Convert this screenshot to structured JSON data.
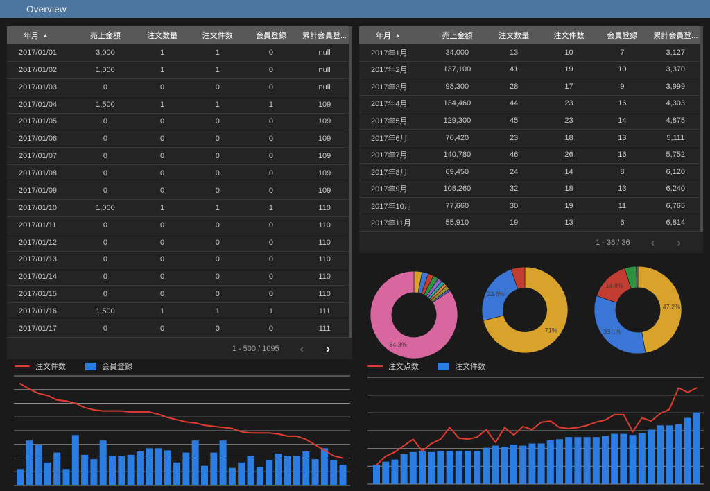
{
  "title_bar": {
    "title": "Overview"
  },
  "left_table": {
    "columns": [
      "年月",
      "売上金額",
      "注文数量",
      "注文件数",
      "会員登録",
      "累計会員登..."
    ],
    "sort": {
      "column": "年月",
      "direction": "asc"
    },
    "rows": [
      [
        "2017/01/01",
        "3,000",
        "1",
        "1",
        "0",
        "null"
      ],
      [
        "2017/01/02",
        "1,000",
        "1",
        "1",
        "0",
        "null"
      ],
      [
        "2017/01/03",
        "0",
        "0",
        "0",
        "0",
        "null"
      ],
      [
        "2017/01/04",
        "1,500",
        "1",
        "1",
        "1",
        "109"
      ],
      [
        "2017/01/05",
        "0",
        "0",
        "0",
        "0",
        "109"
      ],
      [
        "2017/01/06",
        "0",
        "0",
        "0",
        "0",
        "109"
      ],
      [
        "2017/01/07",
        "0",
        "0",
        "0",
        "0",
        "109"
      ],
      [
        "2017/01/08",
        "0",
        "0",
        "0",
        "0",
        "109"
      ],
      [
        "2017/01/09",
        "0",
        "0",
        "0",
        "0",
        "109"
      ],
      [
        "2017/01/10",
        "1,000",
        "1",
        "1",
        "1",
        "110"
      ],
      [
        "2017/01/11",
        "0",
        "0",
        "0",
        "0",
        "110"
      ],
      [
        "2017/01/12",
        "0",
        "0",
        "0",
        "0",
        "110"
      ],
      [
        "2017/01/13",
        "0",
        "0",
        "0",
        "0",
        "110"
      ],
      [
        "2017/01/14",
        "0",
        "0",
        "0",
        "0",
        "110"
      ],
      [
        "2017/01/15",
        "0",
        "0",
        "0",
        "0",
        "110"
      ],
      [
        "2017/01/16",
        "1,500",
        "1",
        "1",
        "1",
        "111"
      ],
      [
        "2017/01/17",
        "0",
        "0",
        "0",
        "0",
        "111"
      ]
    ],
    "pagination": {
      "range": "1 - 500 / 1095",
      "prev_enabled": false,
      "next_enabled": true
    }
  },
  "right_table": {
    "columns": [
      "年月",
      "売上金額",
      "注文数量",
      "注文件数",
      "会員登録",
      "累計会員登..."
    ],
    "sort": {
      "column": "年月",
      "direction": "asc"
    },
    "rows": [
      [
        "2017年1月",
        "34,000",
        "13",
        "10",
        "7",
        "3,127"
      ],
      [
        "2017年2月",
        "137,100",
        "41",
        "19",
        "10",
        "3,370"
      ],
      [
        "2017年3月",
        "98,300",
        "28",
        "17",
        "9",
        "3,999"
      ],
      [
        "2017年4月",
        "134,460",
        "44",
        "23",
        "16",
        "4,303"
      ],
      [
        "2017年5月",
        "129,300",
        "45",
        "23",
        "14",
        "4,875"
      ],
      [
        "2017年6月",
        "70,420",
        "23",
        "18",
        "13",
        "5,111"
      ],
      [
        "2017年7月",
        "140,780",
        "46",
        "26",
        "16",
        "5,752"
      ],
      [
        "2017年8月",
        "69,450",
        "24",
        "14",
        "8",
        "6,120"
      ],
      [
        "2017年9月",
        "108,260",
        "32",
        "18",
        "13",
        "6,240"
      ],
      [
        "2017年10月",
        "77,660",
        "30",
        "19",
        "11",
        "6,765"
      ],
      [
        "2017年11月",
        "55,910",
        "19",
        "13",
        "6",
        "6,814"
      ]
    ],
    "pagination": {
      "range": "1 - 36 / 36",
      "prev_enabled": false,
      "next_enabled": false
    }
  },
  "chart_data": [
    {
      "type": "pie",
      "name": "donut-1",
      "hole_ratio": 0.51,
      "slices": [
        {
          "pct": 3.0,
          "color": "#d9a32b",
          "label": ""
        },
        {
          "pct": 2.4,
          "color": "#3a76d6",
          "label": ""
        },
        {
          "pct": 2.0,
          "color": "#c23d32",
          "label": ""
        },
        {
          "pct": 2.0,
          "color": "#2d9140",
          "label": ""
        },
        {
          "pct": 1.6,
          "color": "#8d61c9",
          "label": ""
        },
        {
          "pct": 1.4,
          "color": "#2ba59b",
          "label": ""
        },
        {
          "pct": 1.1,
          "color": "#df8142",
          "label": ""
        },
        {
          "pct": 1.4,
          "color": "#99922f",
          "label": ""
        },
        {
          "pct": 0.8,
          "color": "#4a68c8",
          "label": ""
        },
        {
          "pct": 84.3,
          "color": "#d9679f",
          "label": "84.3%"
        }
      ]
    },
    {
      "type": "pie",
      "name": "donut-2",
      "hole_ratio": 0.51,
      "slices": [
        {
          "pct": 71.0,
          "color": "#d9a32b",
          "label": "71%"
        },
        {
          "pct": 23.8,
          "color": "#3a76d6",
          "label": "23.8%"
        },
        {
          "pct": 5.2,
          "color": "#c23d32",
          "label": ""
        }
      ]
    },
    {
      "type": "pie",
      "name": "donut-3",
      "hole_ratio": 0.51,
      "slices": [
        {
          "pct": 47.2,
          "color": "#d9a32b",
          "label": "47.2%"
        },
        {
          "pct": 33.1,
          "color": "#3a76d6",
          "label": "33.1%"
        },
        {
          "pct": 14.8,
          "color": "#c23d32",
          "label": "14.8%"
        },
        {
          "pct": 4.3,
          "color": "#2d9140",
          "label": ""
        },
        {
          "pct": 0.6,
          "color": "#8d61c9",
          "label": ""
        }
      ]
    },
    {
      "type": "bar",
      "name": "combo-left",
      "legend": [
        {
          "label": "注文件数",
          "style": "line",
          "color": "#e03c31"
        },
        {
          "label": "会員登録",
          "style": "bar",
          "color": "#2b7de1"
        }
      ],
      "ylim": [
        0,
        100
      ],
      "gridline_count": 9,
      "bars": {
        "name": "会員登録",
        "color": "#2b7de1",
        "values": [
          15,
          41,
          37,
          21,
          30,
          15,
          46,
          28,
          24,
          41,
          27,
          27,
          28,
          31,
          34,
          34,
          32,
          21,
          30,
          41,
          18,
          30,
          41,
          16,
          21,
          27,
          17,
          23,
          29,
          27,
          27,
          31,
          24,
          34,
          23,
          19
        ]
      },
      "line": {
        "name": "注文件数",
        "color": "#e03c31",
        "values": [
          93,
          88,
          84,
          82,
          78,
          77,
          75,
          71,
          69,
          68,
          68,
          68,
          67,
          67,
          67,
          65,
          62,
          60,
          58,
          57,
          55,
          54,
          53,
          52,
          49,
          48,
          48,
          48,
          47,
          45,
          45,
          42,
          37,
          32,
          27,
          25
        ]
      }
    },
    {
      "type": "bar",
      "name": "combo-right",
      "legend": [
        {
          "label": "注文点数",
          "style": "line",
          "color": "#e03c31"
        },
        {
          "label": "注文件数",
          "style": "bar",
          "color": "#2b7de1"
        }
      ],
      "ylim": [
        0,
        100
      ],
      "gridline_count": 7,
      "bars": {
        "name": "注文件数",
        "color": "#2b7de1",
        "values": [
          18,
          21,
          23,
          28,
          30,
          31,
          30,
          31,
          31,
          31,
          31,
          31,
          34,
          36,
          35,
          37,
          36,
          38,
          38,
          41,
          42,
          44,
          44,
          44,
          44,
          45,
          47,
          47,
          46,
          48,
          51,
          55,
          55,
          56,
          62,
          67
        ]
      },
      "line": {
        "name": "注文点数",
        "color": "#e03c31",
        "values": [
          18,
          26,
          30,
          36,
          42,
          31,
          38,
          42,
          53,
          43,
          42,
          44,
          51,
          39,
          53,
          46,
          54,
          51,
          58,
          59,
          53,
          52,
          53,
          55,
          58,
          60,
          65,
          65,
          49,
          62,
          59,
          66,
          70,
          90,
          86,
          90
        ]
      }
    }
  ],
  "colors": {
    "topbar": "#4b76a0",
    "page_background": "#1a1a1a",
    "card_background": "#242424",
    "table_header_background": "#585858",
    "bar_blue": "#2b7de1",
    "line_red": "#e03c31",
    "gridline": "#909090"
  }
}
